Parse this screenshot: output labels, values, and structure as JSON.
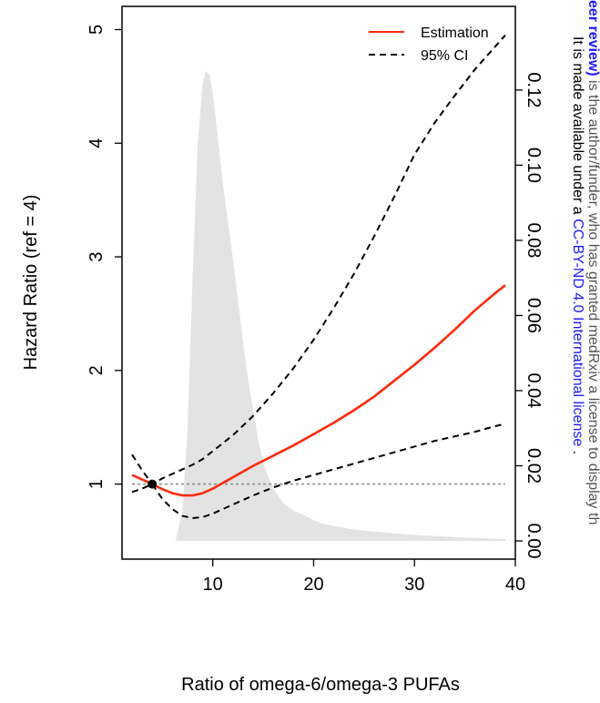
{
  "chart_data": {
    "type": "line",
    "xlabel": "Ratio of omega-6/omega-3 PUFAs",
    "ylabel": "Hazard Ratio (ref = 4)",
    "xlim": [
      1,
      40
    ],
    "ylim": [
      0.5,
      5.1
    ],
    "x_ticks": [
      "10",
      "20",
      "30",
      "40"
    ],
    "y_ticks": [
      "1",
      "2",
      "3",
      "4",
      "5"
    ],
    "y2_ticks": [
      "0.00",
      "0.02",
      "0.04",
      "0.06",
      "0.08",
      "0.10",
      "0.12"
    ],
    "y2lim": [
      0,
      0.127
    ],
    "reference_line_y": 1,
    "reference_point": {
      "x": 4,
      "y": 1
    },
    "legend": {
      "position": "top-right",
      "entries": [
        "Estimation",
        "95% CI"
      ]
    },
    "colors": {
      "estimation": "#ff2a0a",
      "ci": "#000000",
      "density": "#e3e3e3",
      "reference": "#8c8c8c"
    },
    "series": [
      {
        "name": "Estimation",
        "x": [
          2,
          3,
          4,
          5,
          6,
          7,
          8,
          9,
          10,
          12,
          14,
          16,
          18,
          20,
          22,
          24,
          26,
          28,
          30,
          32,
          34,
          36,
          38,
          39
        ],
        "y": [
          1.08,
          1.04,
          1.0,
          0.955,
          0.92,
          0.9,
          0.9,
          0.92,
          0.96,
          1.06,
          1.16,
          1.25,
          1.34,
          1.44,
          1.54,
          1.65,
          1.77,
          1.91,
          2.05,
          2.2,
          2.36,
          2.53,
          2.68,
          2.75
        ]
      },
      {
        "name": "95% CI",
        "x": [
          2,
          3,
          4,
          5,
          6,
          7,
          8,
          9,
          10,
          12,
          14,
          16,
          18,
          20,
          22,
          24,
          26,
          28,
          30,
          32,
          34,
          36,
          38,
          39
        ],
        "y": [
          1.26,
          1.12,
          1.0,
          1.05,
          1.09,
          1.13,
          1.17,
          1.22,
          1.29,
          1.43,
          1.6,
          1.8,
          2.02,
          2.27,
          2.55,
          2.85,
          3.18,
          3.53,
          3.9,
          4.18,
          4.42,
          4.65,
          4.85,
          4.95
        ]
      },
      {
        "name": "",
        "x": [
          2,
          3,
          4,
          5,
          6,
          7,
          8,
          9,
          10,
          12,
          14,
          16,
          18,
          20,
          22,
          24,
          26,
          28,
          30,
          32,
          34,
          36,
          38,
          39
        ],
        "y": [
          0.93,
          0.96,
          1.0,
          0.87,
          0.78,
          0.72,
          0.7,
          0.71,
          0.74,
          0.82,
          0.9,
          0.97,
          1.03,
          1.08,
          1.13,
          1.18,
          1.23,
          1.28,
          1.33,
          1.38,
          1.42,
          1.46,
          1.51,
          1.53
        ]
      }
    ],
    "density": {
      "x": [
        6.3,
        7,
        7.5,
        8,
        8.5,
        9,
        9.3,
        9.7,
        10.1,
        10.6,
        11,
        11.5,
        12,
        12.5,
        13,
        13.5,
        14,
        14.5,
        15,
        15.5,
        16,
        17,
        18,
        19,
        20,
        21,
        22,
        23,
        24,
        26,
        28,
        30,
        32,
        34,
        36,
        38,
        39
      ],
      "y": [
        0.0,
        0.008,
        0.03,
        0.07,
        0.105,
        0.122,
        0.125,
        0.124,
        0.117,
        0.105,
        0.095,
        0.085,
        0.075,
        0.064,
        0.053,
        0.043,
        0.035,
        0.027,
        0.021,
        0.017,
        0.014,
        0.01,
        0.008,
        0.007,
        0.0055,
        0.0045,
        0.004,
        0.0035,
        0.003,
        0.0025,
        0.002,
        0.0016,
        0.0013,
        0.001,
        0.0008,
        0.0006,
        0.0005
      ]
    }
  },
  "overlay": {
    "line1_bold": "eer review)",
    "line1_rest": " is the author/funder, who has granted medRxiv a license to display th",
    "line2_pre": "It is made available under a ",
    "line2_link": "CC-BY-ND 4.0 International license",
    "line2_post": " ."
  }
}
